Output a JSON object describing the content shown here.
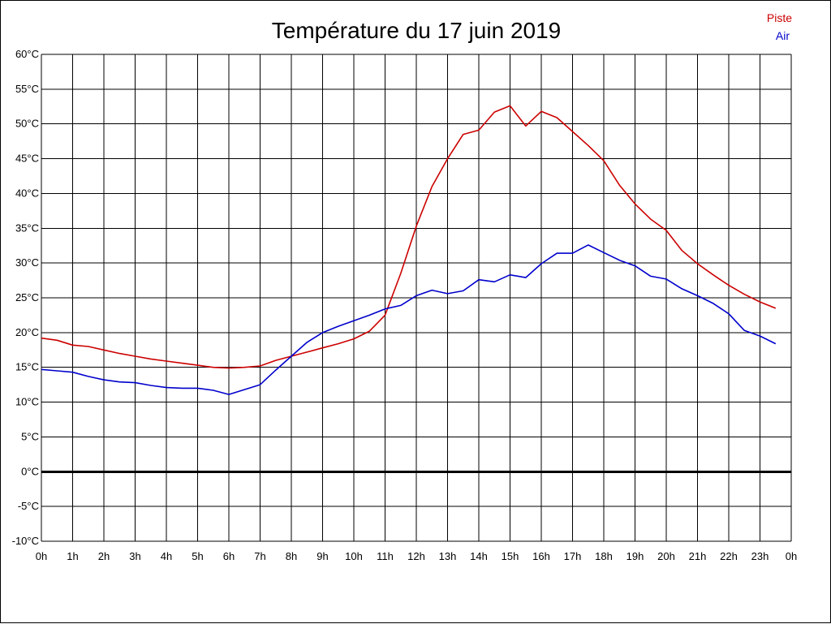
{
  "chart_data": {
    "type": "line",
    "title": "Température du 17 juin 2019",
    "xlabel": "",
    "ylabel": "",
    "x_tick_labels": [
      "0h",
      "1h",
      "2h",
      "3h",
      "4h",
      "5h",
      "6h",
      "7h",
      "8h",
      "9h",
      "10h",
      "11h",
      "12h",
      "13h",
      "14h",
      "15h",
      "16h",
      "17h",
      "18h",
      "19h",
      "20h",
      "21h",
      "22h",
      "23h",
      "0h"
    ],
    "y_ticks": [
      -10,
      -5,
      0,
      5,
      10,
      15,
      20,
      25,
      30,
      35,
      40,
      45,
      50,
      55,
      60
    ],
    "y_tick_labels": [
      "-10°C",
      "-5°C",
      "0°C",
      "5°C",
      "10°C",
      "15°C",
      "20°C",
      "25°C",
      "30°C",
      "35°C",
      "40°C",
      "45°C",
      "50°C",
      "55°C",
      "60°C"
    ],
    "xlim": [
      0,
      24
    ],
    "ylim": [
      -10,
      60
    ],
    "grid": true,
    "legend_position": "top-right",
    "x": [
      0,
      0.5,
      1,
      1.5,
      2,
      2.5,
      3,
      3.5,
      4,
      4.5,
      5,
      5.5,
      6,
      6.5,
      7,
      7.5,
      8,
      8.5,
      9,
      9.5,
      10,
      10.5,
      11,
      11.5,
      12,
      12.5,
      13,
      13.5,
      14,
      14.5,
      15,
      15.5,
      16,
      16.5,
      17,
      17.5,
      18,
      18.5,
      19,
      19.5,
      20,
      20.5,
      21,
      21.5,
      22,
      22.5,
      23,
      23.5
    ],
    "series": [
      {
        "name": "Piste",
        "color": "#cc0000",
        "values": [
          19.2,
          18.9,
          18.2,
          18.0,
          17.5,
          17.0,
          16.6,
          16.2,
          15.9,
          15.6,
          15.3,
          15.0,
          14.9,
          15.0,
          15.2,
          16.0,
          16.6,
          17.2,
          17.8,
          18.4,
          19.1,
          20.2,
          22.5,
          28.5,
          35.3,
          41.0,
          45.0,
          48.5,
          49.1,
          51.7,
          52.6,
          49.7,
          51.8,
          50.9,
          48.9,
          46.9,
          44.7,
          41.2,
          38.5,
          36.3,
          34.7,
          31.8,
          29.9,
          28.3,
          26.8,
          25.5,
          24.4,
          23.5
        ]
      },
      {
        "name": "Air",
        "color": "#0000cc",
        "values": [
          14.7,
          14.5,
          14.3,
          13.7,
          13.2,
          12.9,
          12.8,
          12.4,
          12.1,
          12.0,
          12.0,
          11.7,
          11.1,
          11.8,
          12.5,
          14.6,
          16.6,
          18.6,
          20.0,
          20.9,
          21.7,
          22.5,
          23.4,
          23.9,
          25.3,
          26.1,
          25.6,
          26.0,
          27.6,
          27.3,
          28.3,
          27.9,
          29.9,
          31.4,
          31.4,
          32.6,
          31.5,
          30.4,
          29.6,
          28.1,
          27.7,
          26.3,
          25.3,
          24.2,
          22.7,
          20.3,
          19.5,
          18.4
        ]
      }
    ]
  }
}
